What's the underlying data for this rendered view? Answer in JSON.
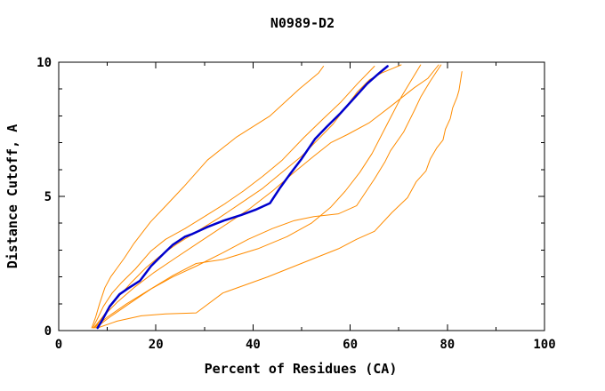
{
  "chart_data": {
    "type": "line",
    "title": "N0989-D2",
    "xlabel": "Percent of Residues (CA)",
    "ylabel": "Distance Cutoff, A",
    "xlim": [
      0,
      100
    ],
    "ylim": [
      0,
      10
    ],
    "x_major_ticks": [
      0,
      20,
      40,
      60,
      80,
      100
    ],
    "x_minor_ticks": [
      10,
      30,
      50,
      70,
      90
    ],
    "y_major_ticks": [
      0,
      5,
      10
    ],
    "y_minor_ticks": [
      1,
      2,
      3,
      4,
      6,
      7,
      8,
      9
    ],
    "grid": false,
    "legend_position": "none",
    "box": true,
    "colors": {
      "axis": "#000000",
      "model": "#ff8c00",
      "highlight": "#0000cd",
      "background": "#ffffff"
    },
    "series": [
      {
        "name": "model-a",
        "color": "#ff8c00",
        "width": 1,
        "points": [
          [
            6.8,
            0.1
          ],
          [
            7.6,
            0.5
          ],
          [
            8.4,
            1.0
          ],
          [
            9.5,
            1.6
          ],
          [
            10.7,
            2.0
          ],
          [
            11.9,
            2.3
          ],
          [
            13.5,
            2.7
          ],
          [
            15.5,
            3.25
          ],
          [
            18.9,
            4.05
          ],
          [
            22.3,
            4.7
          ],
          [
            25.7,
            5.35
          ],
          [
            30.6,
            6.35
          ],
          [
            36.5,
            7.2
          ],
          [
            43.5,
            8.0
          ],
          [
            49.5,
            9.0
          ],
          [
            53.5,
            9.6
          ],
          [
            54.5,
            9.85
          ]
        ]
      },
      {
        "name": "model-b",
        "color": "#ff8c00",
        "width": 1,
        "points": [
          [
            7.0,
            0.1
          ],
          [
            8.0,
            0.45
          ],
          [
            9.2,
            0.9
          ],
          [
            11.0,
            1.4
          ],
          [
            13.0,
            1.8
          ],
          [
            15.8,
            2.3
          ],
          [
            18.9,
            2.95
          ],
          [
            22.0,
            3.4
          ],
          [
            26.0,
            3.8
          ],
          [
            30.0,
            4.25
          ],
          [
            34.0,
            4.7
          ],
          [
            38.0,
            5.2
          ],
          [
            42.0,
            5.75
          ],
          [
            46.0,
            6.35
          ],
          [
            50.5,
            7.2
          ],
          [
            54.5,
            7.9
          ],
          [
            58.0,
            8.5
          ],
          [
            61.5,
            9.2
          ],
          [
            64.2,
            9.7
          ],
          [
            65.0,
            9.85
          ]
        ]
      },
      {
        "name": "model-c",
        "color": "#ff8c00",
        "width": 1,
        "points": [
          [
            7.4,
            0.1
          ],
          [
            8.6,
            0.4
          ],
          [
            10.2,
            0.8
          ],
          [
            12.5,
            1.3
          ],
          [
            15.0,
            1.8
          ],
          [
            18.0,
            2.35
          ],
          [
            21.0,
            2.8
          ],
          [
            24.5,
            3.25
          ],
          [
            28.5,
            3.7
          ],
          [
            33.0,
            4.2
          ],
          [
            37.5,
            4.75
          ],
          [
            42.0,
            5.3
          ],
          [
            46.0,
            5.9
          ],
          [
            50.0,
            6.5
          ],
          [
            53.8,
            7.2
          ],
          [
            56.5,
            7.7
          ],
          [
            59.0,
            8.3
          ],
          [
            61.5,
            8.9
          ],
          [
            64.0,
            9.35
          ],
          [
            66.5,
            9.6
          ],
          [
            68.5,
            9.75
          ],
          [
            70.5,
            9.9
          ]
        ]
      },
      {
        "name": "model-d",
        "color": "#ff8c00",
        "width": 1,
        "points": [
          [
            7.2,
            0.1
          ],
          [
            9.0,
            0.5
          ],
          [
            12.0,
            1.05
          ],
          [
            15.5,
            1.6
          ],
          [
            19.5,
            2.15
          ],
          [
            24.0,
            2.7
          ],
          [
            29.0,
            3.3
          ],
          [
            34.0,
            3.9
          ],
          [
            39.0,
            4.5
          ],
          [
            44.0,
            5.2
          ],
          [
            48.5,
            5.9
          ],
          [
            52.5,
            6.5
          ],
          [
            56.0,
            7.0
          ],
          [
            59.4,
            7.3
          ],
          [
            64.0,
            7.75
          ],
          [
            68.3,
            8.35
          ],
          [
            73.2,
            9.05
          ],
          [
            76.0,
            9.4
          ],
          [
            78.2,
            9.9
          ]
        ]
      },
      {
        "name": "model-e",
        "color": "#ff8c00",
        "width": 1,
        "points": [
          [
            7.6,
            0.1
          ],
          [
            10.5,
            0.5
          ],
          [
            14.5,
            1.0
          ],
          [
            19.0,
            1.55
          ],
          [
            23.5,
            2.0
          ],
          [
            28.3,
            2.4
          ],
          [
            33.8,
            2.9
          ],
          [
            39.0,
            3.4
          ],
          [
            44.0,
            3.8
          ],
          [
            48.5,
            4.1
          ],
          [
            52.5,
            4.25
          ],
          [
            57.6,
            4.35
          ],
          [
            61.3,
            4.65
          ],
          [
            65.0,
            5.65
          ],
          [
            67.2,
            6.3
          ],
          [
            68.3,
            6.7
          ],
          [
            71.0,
            7.4
          ],
          [
            73.2,
            8.2
          ],
          [
            74.5,
            8.7
          ],
          [
            76.5,
            9.3
          ],
          [
            78.7,
            9.9
          ]
        ]
      },
      {
        "name": "model-f",
        "color": "#ff8c00",
        "width": 1,
        "points": [
          [
            7.3,
            0.1
          ],
          [
            10.0,
            0.5
          ],
          [
            14.0,
            1.0
          ],
          [
            18.5,
            1.5
          ],
          [
            23.5,
            2.05
          ],
          [
            28.3,
            2.5
          ],
          [
            33.8,
            2.65
          ],
          [
            41.0,
            3.05
          ],
          [
            47.0,
            3.5
          ],
          [
            52.0,
            4.0
          ],
          [
            56.0,
            4.6
          ],
          [
            59.0,
            5.2
          ],
          [
            62.0,
            5.9
          ],
          [
            64.5,
            6.6
          ],
          [
            66.5,
            7.3
          ],
          [
            68.5,
            8.0
          ],
          [
            70.5,
            8.7
          ],
          [
            72.5,
            9.3
          ],
          [
            74.5,
            9.9
          ]
        ]
      },
      {
        "name": "model-g",
        "color": "#ff8c00",
        "width": 1,
        "points": [
          [
            8.0,
            0.1
          ],
          [
            12.0,
            0.35
          ],
          [
            17.0,
            0.55
          ],
          [
            22.0,
            0.62
          ],
          [
            28.3,
            0.66
          ],
          [
            33.8,
            1.4
          ],
          [
            43.0,
            2.0
          ],
          [
            52.0,
            2.65
          ],
          [
            57.6,
            3.05
          ],
          [
            61.3,
            3.4
          ],
          [
            65.0,
            3.7
          ],
          [
            68.6,
            4.4
          ],
          [
            71.8,
            4.95
          ],
          [
            73.6,
            5.55
          ],
          [
            75.6,
            5.95
          ],
          [
            76.5,
            6.4
          ],
          [
            77.8,
            6.8
          ],
          [
            79.1,
            7.1
          ],
          [
            79.6,
            7.5
          ],
          [
            80.6,
            7.9
          ],
          [
            81.1,
            8.3
          ],
          [
            82.0,
            8.7
          ],
          [
            82.4,
            8.95
          ],
          [
            83.0,
            9.65
          ]
        ]
      },
      {
        "name": "highlighted-model",
        "color": "#0000cd",
        "width": 2.5,
        "points": [
          [
            8.0,
            0.1
          ],
          [
            9.0,
            0.4
          ],
          [
            10.5,
            0.9
          ],
          [
            12.5,
            1.35
          ],
          [
            14.5,
            1.6
          ],
          [
            16.7,
            1.85
          ],
          [
            19.0,
            2.4
          ],
          [
            21.5,
            2.85
          ],
          [
            23.5,
            3.2
          ],
          [
            26.0,
            3.5
          ],
          [
            27.5,
            3.6
          ],
          [
            30.5,
            3.85
          ],
          [
            34.0,
            4.1
          ],
          [
            37.5,
            4.3
          ],
          [
            40.5,
            4.5
          ],
          [
            43.5,
            4.75
          ],
          [
            45.5,
            5.3
          ],
          [
            47.5,
            5.8
          ],
          [
            50.0,
            6.4
          ],
          [
            52.8,
            7.15
          ],
          [
            55.2,
            7.6
          ],
          [
            58.0,
            8.1
          ],
          [
            61.0,
            8.7
          ],
          [
            63.5,
            9.2
          ],
          [
            66.0,
            9.6
          ],
          [
            67.7,
            9.85
          ]
        ]
      }
    ]
  }
}
